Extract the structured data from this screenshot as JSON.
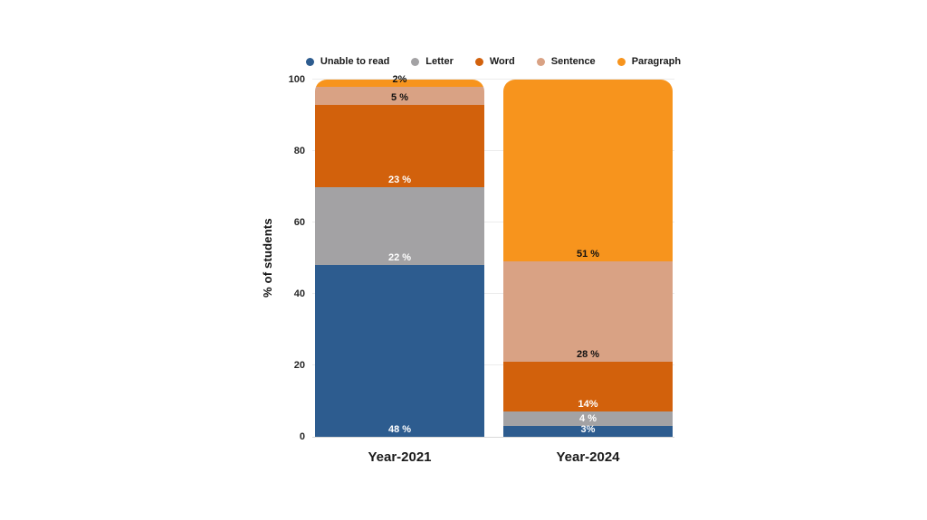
{
  "chart_data": {
    "type": "bar",
    "stacked": true,
    "ylabel": "% of students",
    "ylim": [
      0,
      100
    ],
    "yticks": [
      0,
      20,
      40,
      60,
      80,
      100
    ],
    "grid": "horizontal",
    "legend_position": "top",
    "categories": [
      "Year-2021",
      "Year-2024"
    ],
    "series": [
      {
        "name": "Unable to read",
        "color": "#2D5C8F",
        "label_color": "#ffffff",
        "values": [
          48,
          3
        ],
        "value_labels": [
          "48 %",
          "3%"
        ]
      },
      {
        "name": "Letter",
        "color": "#A3A2A4",
        "label_color": "#ffffff",
        "values": [
          22,
          4
        ],
        "value_labels": [
          "22 %",
          "4 %"
        ]
      },
      {
        "name": "Word",
        "color": "#D2610C",
        "label_color": "#ffffff",
        "values": [
          23,
          14
        ],
        "value_labels": [
          "23 %",
          "14%"
        ]
      },
      {
        "name": "Sentence",
        "color": "#D9A284",
        "label_color": "#111111",
        "values": [
          5,
          28
        ],
        "value_labels": [
          "5 %",
          "28 %"
        ]
      },
      {
        "name": "Paragraph",
        "color": "#F7941D",
        "label_color": "#111111",
        "values": [
          2,
          51
        ],
        "value_labels": [
          "2%",
          "51 %"
        ]
      }
    ]
  }
}
